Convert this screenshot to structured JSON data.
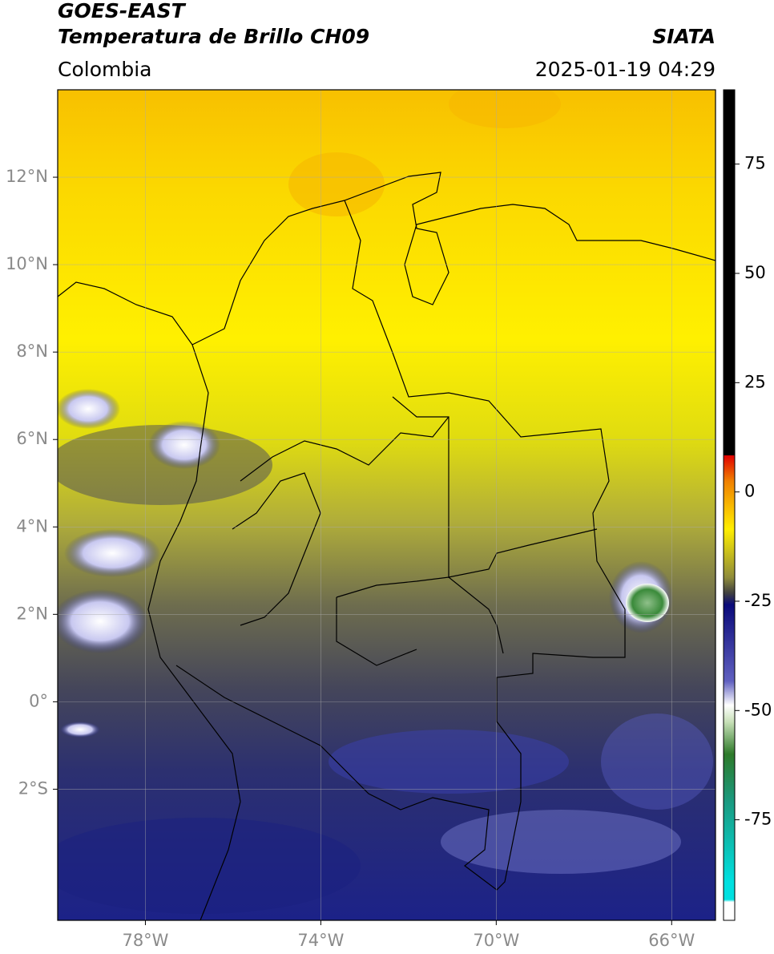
{
  "map": {
    "title": "GOES-EAST",
    "subtitle": "Temperatura de Brillo CH09",
    "source": "SIATA",
    "region": "Colombia",
    "datetime": "2025-01-19 04:29",
    "lonlim": [
      -80,
      -65
    ],
    "latlim": [
      -5,
      14
    ],
    "lon_ticks": [
      {
        "value": -78,
        "label": "78°W"
      },
      {
        "value": -74,
        "label": "74°W"
      },
      {
        "value": -70,
        "label": "70°W"
      },
      {
        "value": -66,
        "label": "66°W"
      }
    ],
    "lat_ticks": [
      {
        "value": 12,
        "label": "12°N"
      },
      {
        "value": 10,
        "label": "10°N"
      },
      {
        "value": 8,
        "label": "8°N"
      },
      {
        "value": 6,
        "label": "6°N"
      },
      {
        "value": 4,
        "label": "4°N"
      },
      {
        "value": 2,
        "label": "2°N"
      },
      {
        "value": 0,
        "label": "0°"
      },
      {
        "value": -2,
        "label": "2°S"
      }
    ],
    "colorbar": {
      "lim": [
        -98,
        92
      ],
      "ticks": [
        75,
        50,
        25,
        0,
        -25,
        -50,
        -75
      ]
    }
  }
}
